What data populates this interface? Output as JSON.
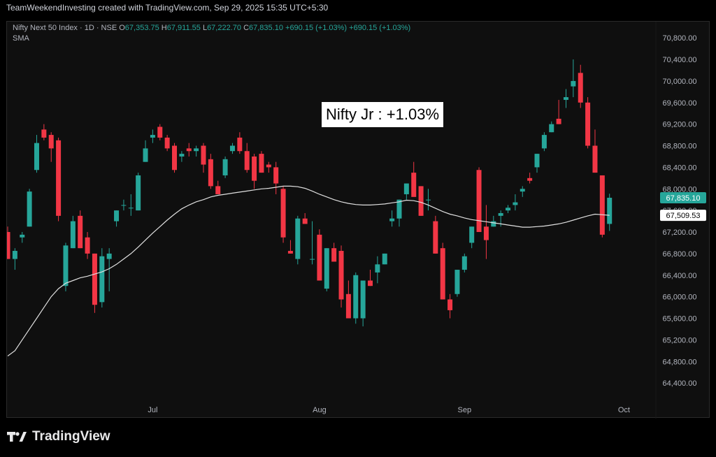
{
  "header": {
    "text": "TeamWeekendInvesting created with TradingView.com, Sep 29, 2025 15:35 UTC+5:30"
  },
  "legend": {
    "symbol": "Nifty Next 50 Index · 1D · NSE",
    "o_label": "O",
    "o_value": "67,353.75",
    "h_label": "H",
    "h_value": "67,911.55",
    "l_label": "L",
    "l_value": "67,222.70",
    "c_label": "C",
    "c_value": "67,835.10",
    "change": "+690.15 (+1.03%)",
    "change2": "+690.15 (+1.03%)",
    "sma_label": "SMA"
  },
  "annotation": "Nifty Jr : +1.03%",
  "brand": "TradingView",
  "colors": {
    "up": "#26a69a",
    "down": "#f23645",
    "sma": "#e0e0e0",
    "axis_text": "#b2b5be",
    "background": "#0f0f0f"
  },
  "chart_data": {
    "type": "candlestick",
    "interval": "1D",
    "ylim": [
      64000,
      71100
    ],
    "y_ticks": [
      64400,
      64800,
      65200,
      65600,
      66000,
      66400,
      66800,
      67200,
      67600,
      68000,
      68400,
      68800,
      69200,
      69600,
      70000,
      70400,
      70800
    ],
    "y_tick_labels": [
      "64,400.00",
      "64,800.00",
      "65,200.00",
      "65,600.00",
      "66,000.00",
      "66,400.00",
      "66,800.00",
      "67,200.00",
      "67,600.00",
      "68,000.00",
      "68,400.00",
      "68,800.00",
      "69,200.00",
      "69,600.00",
      "70,000.00",
      "70,400.00",
      "70,800.00"
    ],
    "x_ticks": [
      {
        "label": "Jul",
        "index": 20
      },
      {
        "label": "Aug",
        "index": 43
      },
      {
        "label": "Sep",
        "index": 63
      },
      {
        "label": "Oct",
        "index": 85
      }
    ],
    "grid": false,
    "last_price": {
      "value": 67835.1,
      "label": "67,835.10"
    },
    "sma_last": {
      "value": 67509.53,
      "label": "67,509.53"
    },
    "candles": [
      [
        67200,
        67300,
        66700,
        66700
      ],
      [
        66700,
        66900,
        66500,
        66850
      ],
      [
        67100,
        67200,
        67000,
        67150
      ],
      [
        67300,
        68000,
        67300,
        67950
      ],
      [
        68350,
        69000,
        68300,
        68850
      ],
      [
        69100,
        69200,
        68900,
        68950
      ],
      [
        69000,
        69050,
        68500,
        68750
      ],
      [
        68900,
        68950,
        67400,
        67500
      ],
      [
        66200,
        67000,
        66100,
        66950
      ],
      [
        66900,
        67500,
        66900,
        67400
      ],
      [
        67500,
        67600,
        66900,
        66900
      ],
      [
        67100,
        67200,
        66700,
        66800
      ],
      [
        66800,
        66800,
        65700,
        65850
      ],
      [
        65900,
        66900,
        65800,
        66750
      ],
      [
        66700,
        66900,
        66100,
        66800
      ],
      [
        67400,
        67600,
        67300,
        67600
      ],
      [
        67700,
        67800,
        67600,
        67700
      ],
      [
        67650,
        67900,
        67500,
        67650
      ],
      [
        67600,
        68300,
        67600,
        68250
      ],
      [
        68500,
        68900,
        68500,
        68750
      ],
      [
        68950,
        69100,
        68850,
        69000
      ],
      [
        69150,
        69200,
        68900,
        68950
      ],
      [
        68950,
        69000,
        68700,
        68750
      ],
      [
        68800,
        68850,
        68300,
        68350
      ],
      [
        68600,
        68700,
        68500,
        68650
      ],
      [
        68750,
        68850,
        68600,
        68700
      ],
      [
        68700,
        68800,
        68600,
        68750
      ],
      [
        68800,
        68850,
        68300,
        68450
      ],
      [
        68550,
        68650,
        68000,
        68050
      ],
      [
        68050,
        68150,
        67900,
        67900
      ],
      [
        68250,
        68600,
        68200,
        68550
      ],
      [
        68700,
        68850,
        68650,
        68800
      ],
      [
        68950,
        69050,
        68650,
        68700
      ],
      [
        68700,
        68850,
        68300,
        68350
      ],
      [
        68600,
        68650,
        68000,
        68150
      ],
      [
        68650,
        68700,
        68300,
        68300
      ],
      [
        68450,
        68500,
        68300,
        68400
      ],
      [
        68400,
        68500,
        67900,
        68100
      ],
      [
        68000,
        68050,
        67000,
        67100
      ],
      [
        66850,
        67050,
        66800,
        66800
      ],
      [
        66700,
        67500,
        66600,
        67450
      ],
      [
        67450,
        67550,
        67350,
        67350
      ],
      [
        66700,
        67400,
        66600,
        66700
      ],
      [
        67150,
        67250,
        66300,
        66300
      ],
      [
        66150,
        66900,
        66100,
        66900
      ],
      [
        66900,
        67000,
        66650,
        66650
      ],
      [
        66850,
        66950,
        65800,
        65950
      ],
      [
        66050,
        66300,
        65600,
        65600
      ],
      [
        65600,
        66450,
        65500,
        66400
      ],
      [
        65600,
        66300,
        65450,
        66300
      ],
      [
        66300,
        66500,
        66200,
        66200
      ],
      [
        66450,
        66750,
        66250,
        66600
      ],
      [
        66600,
        66800,
        66600,
        66800
      ],
      [
        67400,
        67600,
        67300,
        67450
      ],
      [
        67450,
        67800,
        67300,
        67800
      ],
      [
        67900,
        68100,
        67800,
        68100
      ],
      [
        68300,
        68500,
        67900,
        67850
      ],
      [
        68050,
        68050,
        67500,
        67500
      ],
      [
        67800,
        68000,
        67600,
        67800
      ],
      [
        67400,
        67500,
        66800,
        66800
      ],
      [
        66900,
        67000,
        65950,
        65950
      ],
      [
        65950,
        66050,
        65600,
        65750
      ],
      [
        66050,
        66500,
        66000,
        66500
      ],
      [
        66500,
        66800,
        66450,
        66750
      ],
      [
        67000,
        67300,
        66900,
        67300
      ],
      [
        68350,
        68400,
        67200,
        67200
      ],
      [
        67300,
        67700,
        66700,
        67050
      ],
      [
        67300,
        67500,
        67300,
        67400
      ],
      [
        67500,
        67600,
        67300,
        67550
      ],
      [
        67600,
        67700,
        67550,
        67650
      ],
      [
        67700,
        67900,
        67600,
        67750
      ],
      [
        67950,
        68050,
        67850,
        68000
      ],
      [
        68200,
        68300,
        68100,
        68150
      ],
      [
        68400,
        68650,
        68300,
        68650
      ],
      [
        68750,
        69050,
        68700,
        69000
      ],
      [
        69050,
        69250,
        69050,
        69200
      ],
      [
        69300,
        69650,
        69200,
        69200
      ],
      [
        69650,
        69850,
        69500,
        69700
      ],
      [
        69900,
        70400,
        69700,
        70000
      ],
      [
        70150,
        70300,
        69500,
        69600
      ],
      [
        69600,
        69700,
        68750,
        68800
      ],
      [
        68800,
        69100,
        68300,
        68300
      ],
      [
        68250,
        68250,
        67100,
        67150
      ],
      [
        67350,
        67910,
        67220,
        67835
      ]
    ],
    "sma": [
      64900,
      65000,
      65200,
      65400,
      65600,
      65800,
      66000,
      66150,
      66250,
      66300,
      66350,
      66380,
      66420,
      66460,
      66520,
      66600,
      66700,
      66800,
      66920,
      67050,
      67180,
      67300,
      67420,
      67530,
      67630,
      67700,
      67760,
      67800,
      67850,
      67880,
      67900,
      67920,
      67940,
      67960,
      67980,
      68000,
      68010,
      68030,
      68050,
      68050,
      68040,
      68010,
      67960,
      67900,
      67850,
      67800,
      67760,
      67730,
      67710,
      67700,
      67700,
      67710,
      67720,
      67740,
      67760,
      67790,
      67780,
      67750,
      67700,
      67640,
      67580,
      67530,
      67500,
      67460,
      67430,
      67410,
      67390,
      67370,
      67350,
      67330,
      67310,
      67290,
      67290,
      67300,
      67310,
      67330,
      67350,
      67380,
      67420,
      67460,
      67500,
      67530,
      67520,
      67510
    ]
  }
}
